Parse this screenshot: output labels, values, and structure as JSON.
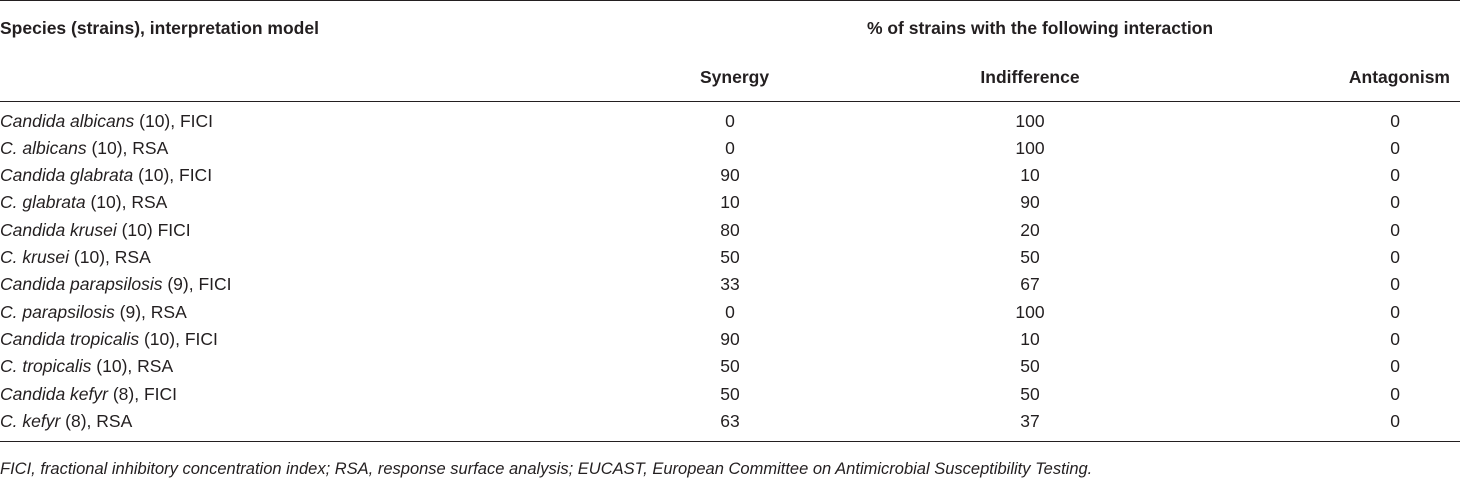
{
  "table": {
    "header": {
      "stub": "Species (strains), interpretation model",
      "group": "% of strains with the following interaction",
      "columns": [
        "Synergy",
        "Indifference",
        "Antagonism"
      ]
    },
    "rows": [
      {
        "species": "Candida albicans",
        "rest": " (10), FICI",
        "values": [
          "0",
          "100",
          "0"
        ]
      },
      {
        "species": "C. albicans",
        "rest": " (10), RSA",
        "values": [
          "0",
          "100",
          "0"
        ]
      },
      {
        "species": "Candida glabrata",
        "rest": " (10), FICI",
        "values": [
          "90",
          "10",
          "0"
        ]
      },
      {
        "species": "C. glabrata",
        "rest": " (10), RSA",
        "values": [
          "10",
          "90",
          "0"
        ]
      },
      {
        "species": "Candida krusei",
        "rest": " (10) FICI",
        "values": [
          "80",
          "20",
          "0"
        ]
      },
      {
        "species": "C. krusei",
        "rest": " (10), RSA",
        "values": [
          "50",
          "50",
          "0"
        ]
      },
      {
        "species": "Candida parapsilosis",
        "rest": " (9), FICI",
        "values": [
          "33",
          "67",
          "0"
        ]
      },
      {
        "species": "C. parapsilosis",
        "rest": " (9), RSA",
        "values": [
          "0",
          "100",
          "0"
        ]
      },
      {
        "species": "Candida tropicalis",
        "rest": " (10), FICI",
        "values": [
          "90",
          "10",
          "0"
        ]
      },
      {
        "species": "C. tropicalis",
        "rest": " (10), RSA",
        "values": [
          "50",
          "50",
          "0"
        ]
      },
      {
        "species": "Candida kefyr",
        "rest": " (8), FICI",
        "values": [
          "50",
          "50",
          "0"
        ]
      },
      {
        "species": "C. kefyr",
        "rest": " (8), RSA",
        "values": [
          "63",
          "37",
          "0"
        ]
      }
    ]
  },
  "footnote": "FICI, fractional inhibitory concentration index; RSA, response surface analysis; EUCAST, European Committee on Antimicrobial Susceptibility Testing."
}
